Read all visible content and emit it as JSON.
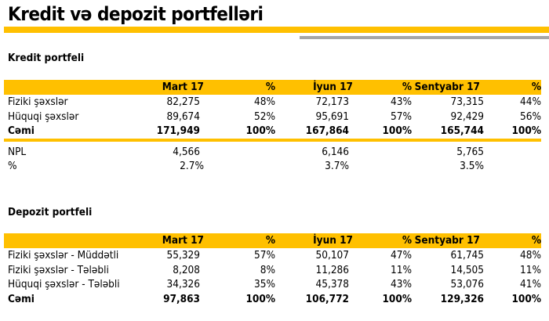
{
  "title": "Kredit və depozit portfelləri",
  "colors": {
    "accent": "#ffc000",
    "gray": "#a6a6a6"
  },
  "credit": {
    "heading": "Kredit portfeli",
    "header": [
      "",
      "Mart 17",
      "%",
      "İyun 17",
      "%",
      "Sentyabr 17",
      "%"
    ],
    "rows": [
      [
        "Fiziki şəxslər",
        "82,275",
        "48%",
        "72,173",
        "43%",
        "73,315",
        "44%"
      ],
      [
        "Hüquqi şəxslər",
        "89,674",
        "52%",
        "95,691",
        "57%",
        "92,429",
        "56%"
      ],
      [
        "Cəmi",
        "171,949",
        "100%",
        "167,864",
        "100%",
        "165,744",
        "100%"
      ]
    ],
    "npl": [
      "NPL",
      "4,566",
      "",
      "6,146",
      "",
      "5,765",
      ""
    ],
    "npl_pct": [
      "%",
      "2.7%",
      "",
      "3.7%",
      "",
      "3.5%",
      ""
    ]
  },
  "deposit": {
    "heading": "Depozit portfeli",
    "header": [
      "",
      "Mart 17",
      "%",
      "İyun 17",
      "%",
      "Sentyabr 17",
      "%"
    ],
    "rows": [
      [
        "Fiziki şəxslər - Müddətli",
        "55,329",
        "57%",
        "50,107",
        "47%",
        "61,745",
        "48%"
      ],
      [
        "Fiziki şəxslər - Tələbli",
        "8,208",
        "8%",
        "11,286",
        "11%",
        "14,505",
        "11%"
      ],
      [
        "Hüquqi şəxslər - Tələbli",
        "34,326",
        "35%",
        "45,378",
        "43%",
        "53,076",
        "41%"
      ],
      [
        "Cəmi",
        "97,863",
        "100%",
        "106,772",
        "100%",
        "129,326",
        "100%"
      ]
    ]
  }
}
